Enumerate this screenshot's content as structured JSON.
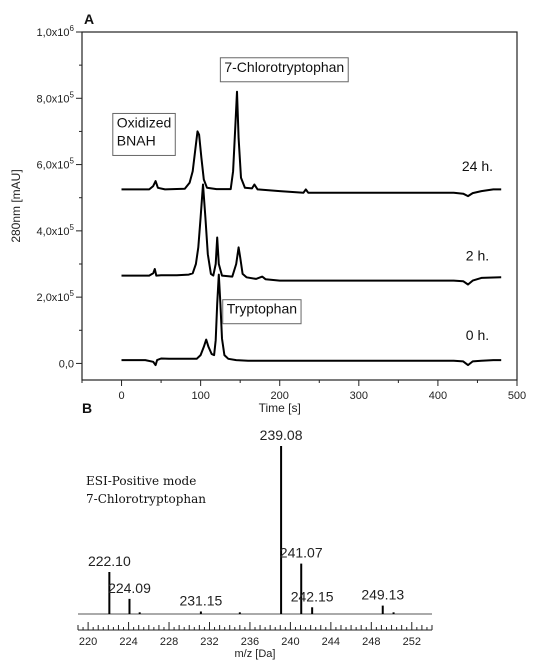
{
  "chart_data": [
    {
      "type": "line",
      "panel_label": "A",
      "xlabel": "Time [s]",
      "ylabel": "280nm [mAU]",
      "xlim": [
        -50,
        500
      ],
      "ylim": [
        -50000,
        1000000
      ],
      "x_ticks": [
        0,
        100,
        200,
        300,
        400,
        500
      ],
      "y_ticks": [
        {
          "value": 0,
          "base": "0,0",
          "exp": ""
        },
        {
          "value": 200000,
          "base": "2,0x10",
          "exp": "5"
        },
        {
          "value": 400000,
          "base": "4,0x10",
          "exp": "5"
        },
        {
          "value": 600000,
          "base": "6,0x10",
          "exp": "5"
        },
        {
          "value": 800000,
          "base": "8,0x10",
          "exp": "5"
        },
        {
          "value": 1000000,
          "base": "1,0x10",
          "exp": "6"
        }
      ],
      "series": [
        {
          "name": "0 h.",
          "label_at": [
            450,
            70000
          ],
          "points": [
            [
              0,
              10000
            ],
            [
              30,
              10000
            ],
            [
              40,
              5000
            ],
            [
              43,
              -5000
            ],
            [
              45,
              10000
            ],
            [
              50,
              15000
            ],
            [
              60,
              14000
            ],
            [
              80,
              14000
            ],
            [
              95,
              14000
            ],
            [
              100,
              25000
            ],
            [
              104,
              50000
            ],
            [
              107,
              72000
            ],
            [
              110,
              50000
            ],
            [
              114,
              28000
            ],
            [
              117,
              25000
            ],
            [
              119,
              70000
            ],
            [
              121,
              180000
            ],
            [
              123,
              268000
            ],
            [
              125,
              180000
            ],
            [
              127,
              75000
            ],
            [
              130,
              25000
            ],
            [
              135,
              14000
            ],
            [
              145,
              10000
            ],
            [
              160,
              8000
            ],
            [
              200,
              8000
            ],
            [
              300,
              8000
            ],
            [
              420,
              8000
            ],
            [
              432,
              6000
            ],
            [
              438,
              -5000
            ],
            [
              444,
              6000
            ],
            [
              455,
              8000
            ],
            [
              470,
              10000
            ],
            [
              480,
              10000
            ]
          ]
        },
        {
          "name": "2 h.",
          "label_at": [
            450,
            310000
          ],
          "points": [
            [
              0,
              265000
            ],
            [
              35,
              265000
            ],
            [
              40,
              272000
            ],
            [
              42,
              285000
            ],
            [
              44,
              265000
            ],
            [
              50,
              266000
            ],
            [
              70,
              266000
            ],
            [
              85,
              268000
            ],
            [
              90,
              272000
            ],
            [
              94,
              300000
            ],
            [
              97,
              350000
            ],
            [
              100,
              440000
            ],
            [
              103,
              540000
            ],
            [
              106,
              440000
            ],
            [
              109,
              330000
            ],
            [
              113,
              270000
            ],
            [
              116,
              265000
            ],
            [
              119,
              300000
            ],
            [
              121,
              380000
            ],
            [
              123,
              300000
            ],
            [
              127,
              265000
            ],
            [
              140,
              262000
            ],
            [
              145,
              300000
            ],
            [
              148,
              350000
            ],
            [
              150,
              320000
            ],
            [
              153,
              270000
            ],
            [
              158,
              260000
            ],
            [
              170,
              255000
            ],
            [
              178,
              262000
            ],
            [
              182,
              254000
            ],
            [
              200,
              250000
            ],
            [
              300,
              250000
            ],
            [
              420,
              250000
            ],
            [
              432,
              248000
            ],
            [
              438,
              238000
            ],
            [
              444,
              250000
            ],
            [
              455,
              258000
            ],
            [
              480,
              260000
            ]
          ]
        },
        {
          "name": "24 h.",
          "label_at": [
            450,
            580000
          ],
          "points": [
            [
              0,
              525000
            ],
            [
              35,
              525000
            ],
            [
              40,
              535000
            ],
            [
              43,
              550000
            ],
            [
              46,
              530000
            ],
            [
              55,
              525000
            ],
            [
              80,
              527000
            ],
            [
              86,
              545000
            ],
            [
              90,
              580000
            ],
            [
              93,
              640000
            ],
            [
              96,
              700000
            ],
            [
              98,
              690000
            ],
            [
              101,
              620000
            ],
            [
              104,
              555000
            ],
            [
              108,
              530000
            ],
            [
              120,
              526000
            ],
            [
              138,
              526000
            ],
            [
              141,
              580000
            ],
            [
              144,
              720000
            ],
            [
              146,
              820000
            ],
            [
              148,
              680000
            ],
            [
              151,
              560000
            ],
            [
              156,
              530000
            ],
            [
              165,
              528000
            ],
            [
              168,
              540000
            ],
            [
              172,
              525000
            ],
            [
              200,
              520000
            ],
            [
              230,
              515000
            ],
            [
              233,
              525000
            ],
            [
              236,
              515000
            ],
            [
              300,
              515000
            ],
            [
              420,
              515000
            ],
            [
              432,
              512000
            ],
            [
              438,
              505000
            ],
            [
              444,
              514000
            ],
            [
              455,
              520000
            ],
            [
              470,
              525000
            ],
            [
              480,
              525000
            ]
          ]
        }
      ],
      "annotations": [
        {
          "lines": [
            "7-Chlorotryptophan"
          ],
          "at": [
            130,
            880000
          ],
          "boxed": true
        },
        {
          "lines": [
            "Oxidized",
            "BNAH"
          ],
          "at": [
            -6,
            712000
          ],
          "boxed": true
        },
        {
          "lines": [
            "Tryptophan"
          ],
          "at": [
            133,
            150000
          ],
          "boxed": true
        }
      ]
    },
    {
      "type": "bar",
      "panel_label": "B",
      "xlabel": "m/z [Da]",
      "xlim": [
        219,
        254
      ],
      "x_ticks": [
        220,
        224,
        228,
        232,
        236,
        240,
        244,
        248,
        252
      ],
      "ylim": [
        0,
        100
      ],
      "annotation_lines": [
        "ESI-Positive mode",
        "7-Chlorotryptophan"
      ],
      "peaks": [
        {
          "mz": 222.1,
          "label": "222.10",
          "intensity": 25
        },
        {
          "mz": 224.09,
          "label": "224.09",
          "intensity": 9
        },
        {
          "mz": 225.1,
          "label": "",
          "intensity": 1
        },
        {
          "mz": 231.15,
          "label": "231.15",
          "intensity": 1.5
        },
        {
          "mz": 235.0,
          "label": "",
          "intensity": 1
        },
        {
          "mz": 239.08,
          "label": "239.08",
          "intensity": 100
        },
        {
          "mz": 241.07,
          "label": "241.07",
          "intensity": 30
        },
        {
          "mz": 242.15,
          "label": "242.15",
          "intensity": 4
        },
        {
          "mz": 249.13,
          "label": "249.13",
          "intensity": 5
        },
        {
          "mz": 250.2,
          "label": "",
          "intensity": 1
        }
      ]
    }
  ]
}
